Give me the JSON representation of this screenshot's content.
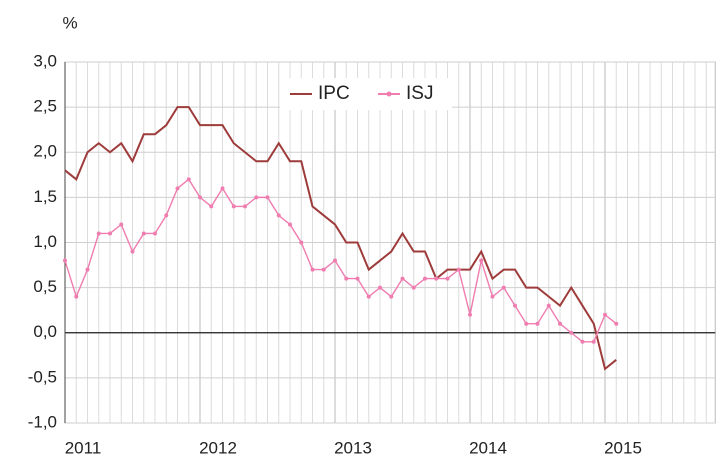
{
  "chart_data": {
    "type": "line",
    "y_label": "%",
    "categories": [
      "2011",
      null,
      null,
      null,
      null,
      null,
      null,
      null,
      null,
      null,
      null,
      null,
      "2012",
      null,
      null,
      null,
      null,
      null,
      null,
      null,
      null,
      null,
      null,
      null,
      "2013",
      null,
      null,
      null,
      null,
      null,
      null,
      null,
      null,
      null,
      null,
      null,
      "2014",
      null,
      null,
      null,
      null,
      null,
      null,
      null,
      null,
      null,
      null,
      null,
      "2015",
      null,
      null,
      null,
      null,
      null,
      null,
      null,
      null,
      null
    ],
    "series": [
      {
        "name": "IPC",
        "color": "#9e3b3b",
        "values": [
          1.8,
          1.7,
          2.0,
          2.1,
          2.0,
          2.1,
          1.9,
          2.2,
          2.2,
          2.3,
          2.5,
          2.5,
          2.3,
          2.3,
          2.3,
          2.1,
          2.0,
          1.9,
          1.9,
          2.1,
          1.9,
          1.9,
          1.4,
          1.3,
          1.2,
          1.0,
          1.0,
          0.7,
          0.8,
          0.9,
          1.1,
          0.9,
          0.9,
          0.6,
          0.7,
          0.7,
          0.7,
          0.9,
          0.6,
          0.7,
          0.7,
          0.5,
          0.5,
          0.4,
          0.3,
          0.5,
          0.3,
          0.1,
          -0.4,
          -0.3,
          null,
          null,
          null,
          null,
          null,
          null,
          null,
          null
        ]
      },
      {
        "name": "ISJ",
        "color": "#f07cb0",
        "values": [
          0.8,
          0.4,
          0.7,
          1.1,
          1.1,
          1.2,
          0.9,
          1.1,
          1.1,
          1.3,
          1.6,
          1.7,
          1.5,
          1.4,
          1.6,
          1.4,
          1.4,
          1.5,
          1.5,
          1.3,
          1.2,
          1.0,
          0.7,
          0.7,
          0.8,
          0.6,
          0.6,
          0.4,
          0.5,
          0.4,
          0.6,
          0.5,
          0.6,
          0.6,
          0.6,
          0.7,
          0.2,
          0.8,
          0.4,
          0.5,
          0.3,
          0.1,
          0.1,
          0.3,
          0.1,
          0.0,
          -0.1,
          -0.1,
          0.2,
          0.1,
          null,
          null,
          null,
          null,
          null,
          null,
          null,
          null
        ]
      }
    ],
    "ylim": [
      -1.0,
      3.0
    ],
    "yticks": [
      {
        "value": -1.0,
        "label": "-1,0"
      },
      {
        "value": -0.5,
        "label": "-0,5"
      },
      {
        "value": 0.0,
        "label": "0,0"
      },
      {
        "value": 0.5,
        "label": "0,5"
      },
      {
        "value": 1.0,
        "label": "1,0"
      },
      {
        "value": 1.5,
        "label": "1,5"
      },
      {
        "value": 2.0,
        "label": "2,0"
      },
      {
        "value": 2.5,
        "label": "2,5"
      },
      {
        "value": 3.0,
        "label": "3,0"
      }
    ],
    "grid": true
  }
}
